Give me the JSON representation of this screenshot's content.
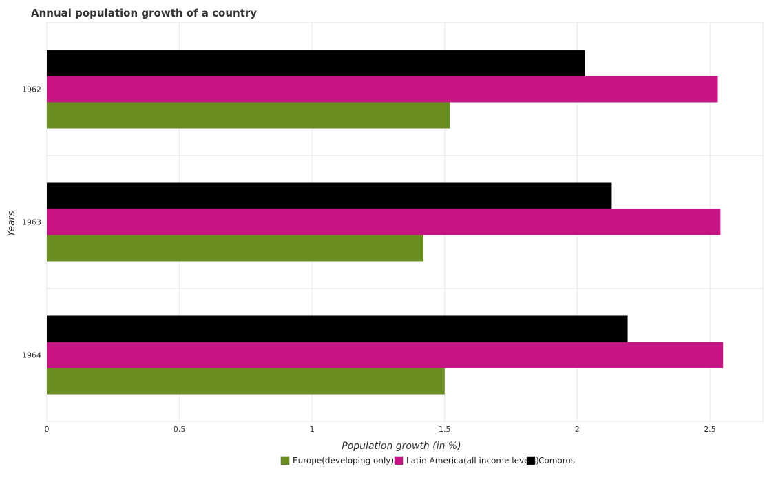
{
  "chart_data": {
    "type": "bar",
    "orientation": "horizontal",
    "title": "Annual population growth of a country",
    "xlabel": "Population growth (in %)",
    "ylabel": "Years",
    "xlim": [
      0,
      2.7
    ],
    "xticks": [
      "0",
      "0.5",
      "1",
      "1.5",
      "2",
      "2.5"
    ],
    "categories": [
      "1962",
      "1963",
      "1964"
    ],
    "series": [
      {
        "name": "Europe(developing only)",
        "color": "#6b8e23",
        "values": [
          1.52,
          1.42,
          1.5
        ]
      },
      {
        "name": "Latin America(all income levels)",
        "color": "#c71585",
        "values": [
          2.53,
          2.54,
          2.55
        ]
      },
      {
        "name": "Comoros",
        "color": "#000000",
        "values": [
          2.03,
          2.13,
          2.19
        ]
      }
    ],
    "grid": true,
    "legend_position": "bottom-left"
  }
}
